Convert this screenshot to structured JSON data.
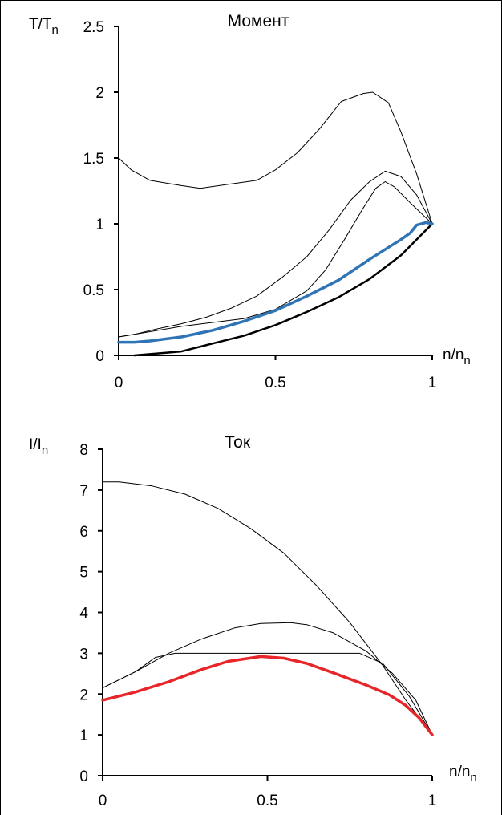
{
  "chart_data": [
    {
      "type": "line",
      "title": "Момент",
      "ylabel": {
        "main": "T/T",
        "sub": "n"
      },
      "xlabel": {
        "main": "n/n",
        "sub": "n"
      },
      "xlim": [
        0,
        1
      ],
      "ylim": [
        0,
        2.5
      ],
      "xticks": [
        "0",
        "0.5",
        "1"
      ],
      "yticks": [
        "0",
        "0.5",
        "1",
        "1.5",
        "2",
        "2.5"
      ],
      "grid": false,
      "series": [
        {
          "color": "#000000",
          "width": 1,
          "points": [
            [
              0,
              1.5
            ],
            [
              0.04,
              1.41
            ],
            [
              0.1,
              1.33
            ],
            [
              0.2,
              1.29
            ],
            [
              0.26,
              1.27
            ],
            [
              0.35,
              1.3
            ],
            [
              0.44,
              1.33
            ],
            [
              0.5,
              1.41
            ],
            [
              0.57,
              1.54
            ],
            [
              0.64,
              1.72
            ],
            [
              0.71,
              1.93
            ],
            [
              0.78,
              1.99
            ],
            [
              0.81,
              2.0
            ],
            [
              0.86,
              1.92
            ],
            [
              0.9,
              1.7
            ],
            [
              0.95,
              1.38
            ],
            [
              1.0,
              1.0
            ]
          ]
        },
        {
          "color": "#000000",
          "width": 1,
          "points": [
            [
              0,
              0.14
            ],
            [
              0.05,
              0.16
            ],
            [
              0.12,
              0.2
            ],
            [
              0.2,
              0.24
            ],
            [
              0.28,
              0.29
            ],
            [
              0.36,
              0.36
            ],
            [
              0.44,
              0.45
            ],
            [
              0.52,
              0.59
            ],
            [
              0.6,
              0.75
            ],
            [
              0.67,
              0.95
            ],
            [
              0.74,
              1.18
            ],
            [
              0.8,
              1.32
            ],
            [
              0.85,
              1.4
            ],
            [
              0.9,
              1.36
            ],
            [
              0.95,
              1.22
            ],
            [
              1.0,
              1.0
            ]
          ]
        },
        {
          "color": "#000000",
          "width": 1,
          "points": [
            [
              0,
              0.14
            ],
            [
              0.1,
              0.18
            ],
            [
              0.2,
              0.22
            ],
            [
              0.3,
              0.25
            ],
            [
              0.4,
              0.28
            ],
            [
              0.5,
              0.35
            ],
            [
              0.6,
              0.49
            ],
            [
              0.66,
              0.65
            ],
            [
              0.72,
              0.88
            ],
            [
              0.78,
              1.12
            ],
            [
              0.82,
              1.27
            ],
            [
              0.85,
              1.32
            ],
            [
              0.88,
              1.28
            ],
            [
              0.93,
              1.16
            ],
            [
              1.0,
              1.0
            ]
          ]
        },
        {
          "color": "#000000",
          "width": 2.5,
          "points": [
            [
              0.05,
              0.0
            ],
            [
              0.1,
              0.01
            ],
            [
              0.2,
              0.03
            ],
            [
              0.3,
              0.09
            ],
            [
              0.4,
              0.15
            ],
            [
              0.5,
              0.23
            ],
            [
              0.6,
              0.33
            ],
            [
              0.7,
              0.44
            ],
            [
              0.8,
              0.58
            ],
            [
              0.9,
              0.76
            ],
            [
              1.0,
              1.0
            ]
          ]
        },
        {
          "color": "#2f75b5",
          "width": 3.5,
          "points": [
            [
              0,
              0.1
            ],
            [
              0.05,
              0.1
            ],
            [
              0.1,
              0.11
            ],
            [
              0.2,
              0.14
            ],
            [
              0.3,
              0.19
            ],
            [
              0.4,
              0.26
            ],
            [
              0.5,
              0.34
            ],
            [
              0.6,
              0.45
            ],
            [
              0.7,
              0.57
            ],
            [
              0.8,
              0.73
            ],
            [
              0.9,
              0.88
            ],
            [
              0.93,
              0.93
            ],
            [
              0.95,
              0.99
            ],
            [
              0.98,
              1.01
            ],
            [
              1.0,
              1.0
            ]
          ]
        }
      ]
    },
    {
      "type": "line",
      "title": "Ток",
      "ylabel": {
        "main": "I/I",
        "sub": "n"
      },
      "xlabel": {
        "main": "n/n",
        "sub": "n"
      },
      "xlim": [
        0,
        1
      ],
      "ylim": [
        0,
        8
      ],
      "xticks": [
        "0",
        "0.5",
        "1"
      ],
      "yticks": [
        "0",
        "1",
        "2",
        "3",
        "4",
        "5",
        "6",
        "7",
        "8"
      ],
      "grid": false,
      "series": [
        {
          "color": "#000000",
          "width": 1,
          "points": [
            [
              0,
              7.2
            ],
            [
              0.05,
              7.2
            ],
            [
              0.15,
              7.1
            ],
            [
              0.25,
              6.9
            ],
            [
              0.35,
              6.55
            ],
            [
              0.45,
              6.05
            ],
            [
              0.55,
              5.45
            ],
            [
              0.65,
              4.65
            ],
            [
              0.75,
              3.75
            ],
            [
              0.85,
              2.7
            ],
            [
              0.92,
              1.85
            ],
            [
              1.0,
              1.0
            ]
          ]
        },
        {
          "color": "#000000",
          "width": 1,
          "points": [
            [
              0,
              2.15
            ],
            [
              0.1,
              2.55
            ],
            [
              0.2,
              3.0
            ],
            [
              0.3,
              3.35
            ],
            [
              0.4,
              3.62
            ],
            [
              0.48,
              3.73
            ],
            [
              0.57,
              3.75
            ],
            [
              0.62,
              3.7
            ],
            [
              0.7,
              3.5
            ],
            [
              0.8,
              3.05
            ],
            [
              0.88,
              2.5
            ],
            [
              0.95,
              1.85
            ],
            [
              1.0,
              1.0
            ]
          ]
        },
        {
          "color": "#000000",
          "width": 1,
          "points": [
            [
              0,
              2.15
            ],
            [
              0.1,
              2.55
            ],
            [
              0.16,
              2.9
            ],
            [
              0.22,
              3.0
            ],
            [
              0.5,
              3.0
            ],
            [
              0.78,
              3.0
            ],
            [
              0.85,
              2.75
            ],
            [
              0.93,
              1.95
            ],
            [
              1.0,
              1.0
            ]
          ]
        },
        {
          "color": "#e8262a",
          "width": 3.5,
          "points": [
            [
              0,
              1.85
            ],
            [
              0.05,
              1.95
            ],
            [
              0.1,
              2.05
            ],
            [
              0.2,
              2.3
            ],
            [
              0.3,
              2.6
            ],
            [
              0.38,
              2.8
            ],
            [
              0.48,
              2.92
            ],
            [
              0.55,
              2.88
            ],
            [
              0.62,
              2.75
            ],
            [
              0.7,
              2.52
            ],
            [
              0.8,
              2.22
            ],
            [
              0.87,
              1.98
            ],
            [
              0.92,
              1.72
            ],
            [
              0.96,
              1.42
            ],
            [
              1.0,
              1.0
            ]
          ]
        }
      ]
    }
  ]
}
